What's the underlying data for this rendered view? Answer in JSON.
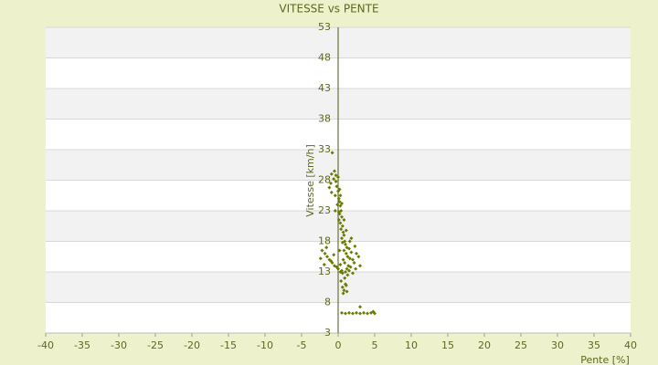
{
  "chart_data": {
    "type": "scatter",
    "title": "VITESSE vs PENTE",
    "x_label": "Pente [%]",
    "y_label": "Vitesse [km/h]",
    "color": "#6b7a00",
    "grid": true,
    "xlim": [
      -40,
      40
    ],
    "xticks": [
      -40,
      -35,
      -30,
      -25,
      -20,
      -15,
      -10,
      -5,
      0,
      5,
      10,
      15,
      20,
      25,
      30,
      35,
      40
    ],
    "ylim": [
      3,
      53
    ],
    "yticks": [
      3,
      8,
      13,
      18,
      23,
      28,
      33,
      38,
      43,
      48,
      53
    ],
    "x": [
      -0.8,
      -0.5,
      -0.3,
      -0.6,
      -1.0,
      -1.2,
      -0.9,
      -0.4,
      -0.2,
      0,
      0.1,
      0.2,
      0.3,
      0.4,
      -0.1,
      0.2,
      0.5,
      0.1,
      0.3,
      0.6,
      0.4,
      0.7,
      0.8,
      0.5,
      0.9,
      1.0,
      1.2,
      0.6,
      0.8,
      1.1,
      1.3,
      1.5,
      0.7,
      0.9,
      1.4,
      1.6,
      1.8,
      2.0,
      1.2,
      1.7,
      2.2,
      2.5,
      0.3,
      0.5,
      -1.5,
      -1.8,
      -1.2,
      -0.8,
      -0.5,
      -0.2,
      0,
      0.3,
      0.6,
      1.0,
      1.3,
      1.5,
      2.0,
      2.4,
      -2.2,
      -1.6,
      -1.0,
      -0.6,
      0.2,
      0.8,
      1.1,
      1.8,
      0.4,
      0.6,
      0.8,
      1.0,
      1.2,
      0.7,
      0.9,
      1.1,
      0.5,
      1.0,
      1.5,
      2.0,
      2.5,
      3.0,
      3.5,
      4.0,
      4.5,
      4.8,
      5.0,
      3.0,
      -0.9,
      -0.3,
      0,
      0.2,
      -0.4,
      0.1,
      0.3,
      2.8,
      3.0,
      -2.4,
      -1.9,
      0.5,
      1.6,
      2.3
    ],
    "values": [
      32.5,
      29.5,
      28.8,
      28.2,
      27.5,
      26.8,
      26.0,
      25.5,
      27.0,
      26.2,
      25.0,
      24.5,
      23.8,
      23.0,
      24.0,
      22.5,
      22.0,
      21.5,
      21.0,
      20.5,
      20.0,
      19.5,
      19.0,
      18.5,
      18.0,
      17.5,
      17.0,
      17.8,
      16.5,
      16.0,
      15.5,
      16.8,
      15.0,
      14.5,
      14.0,
      15.2,
      16.2,
      15.0,
      13.5,
      13.8,
      14.5,
      16.0,
      14.2,
      13.2,
      15.5,
      16.0,
      15.0,
      14.5,
      14.0,
      13.8,
      13.5,
      13.0,
      12.8,
      13.0,
      12.5,
      13.2,
      12.8,
      13.5,
      16.5,
      17.0,
      14.8,
      15.8,
      16.5,
      21.5,
      19.8,
      18.5,
      11.5,
      10.5,
      10.0,
      11.0,
      9.8,
      9.5,
      12.0,
      10.8,
      6.3,
      6.2,
      6.3,
      6.2,
      6.3,
      6.2,
      6.3,
      6.2,
      6.3,
      6.5,
      6.2,
      7.3,
      29.0,
      27.8,
      28.5,
      26.5,
      23.0,
      22.8,
      25.5,
      15.5,
      14.0,
      15.2,
      14.2,
      24.2,
      18.0,
      17.2
    ]
  }
}
